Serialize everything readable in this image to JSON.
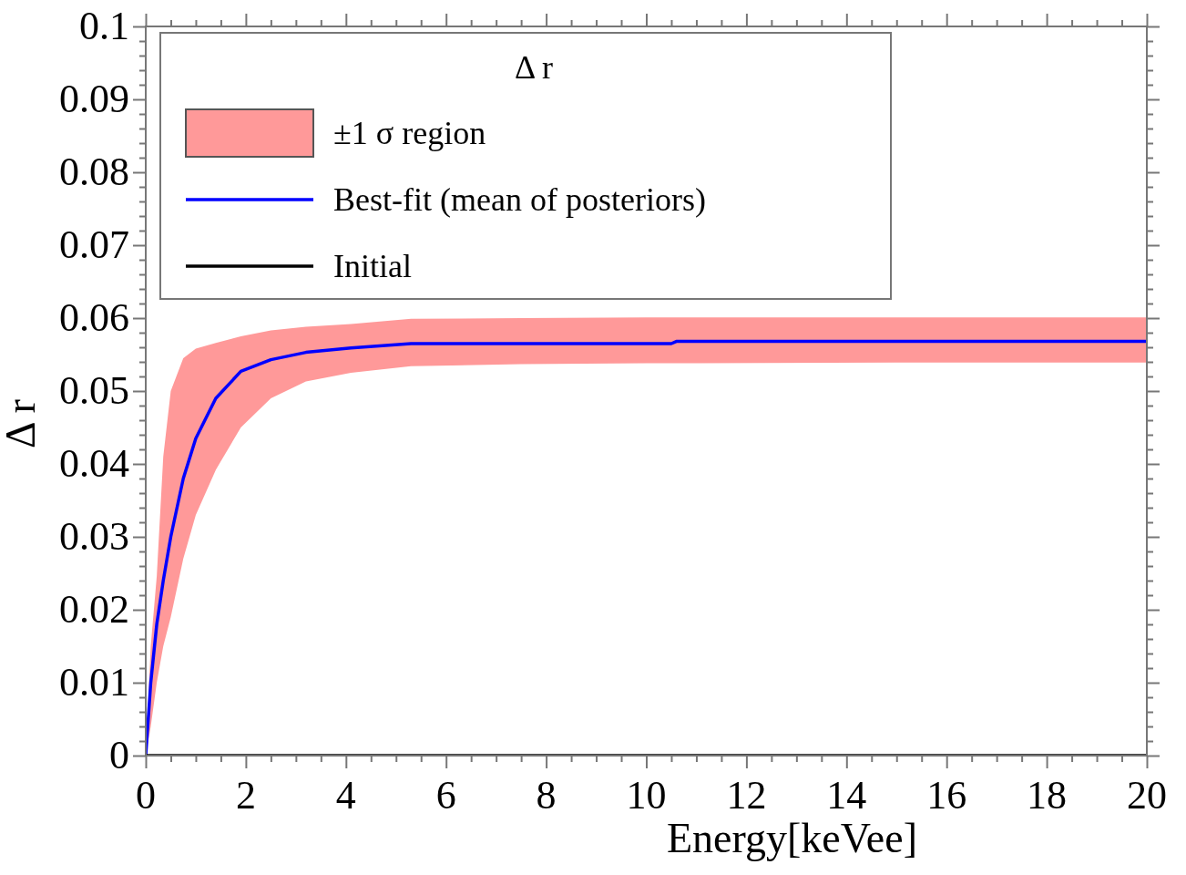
{
  "chart_data": {
    "type": "line",
    "xlabel": "Energy[keVee]",
    "ylabel": "Δ r",
    "legend_title": "Δ r",
    "legend": "top left",
    "grid": false,
    "line_style": "solid",
    "marker": "none",
    "annotations": [
      "±1 σ region"
    ],
    "xlim": [
      0,
      20
    ],
    "xticks": [
      0,
      2,
      4,
      6,
      8,
      10,
      12,
      14,
      16,
      18,
      20
    ],
    "ylim": [
      0,
      0.1
    ],
    "yticks": [
      0,
      0.01,
      0.02,
      0.03,
      0.04,
      0.05,
      0.06,
      0.07,
      0.08,
      0.09,
      0.1
    ],
    "series": [
      {
        "name": "Best-fit (mean of posteriors)",
        "type": "line",
        "color": "#0000ff",
        "x": [
          0,
          0.1,
          0.22,
          0.35,
          0.5,
          0.75,
          1.0,
          1.4,
          1.9,
          2.5,
          3.2,
          4.1,
          5.3,
          7.5,
          10,
          10.5,
          10.6,
          15,
          20
        ],
        "values": [
          0,
          0.01,
          0.018,
          0.024,
          0.03,
          0.038,
          0.0435,
          0.049,
          0.0527,
          0.0543,
          0.0553,
          0.0559,
          0.0565,
          0.0565,
          0.0565,
          0.0565,
          0.0568,
          0.0568,
          0.0568
        ],
        "lower": [
          0,
          0.004,
          0.01,
          0.015,
          0.019,
          0.027,
          0.033,
          0.0392,
          0.045,
          0.049,
          0.0513,
          0.0525,
          0.0534,
          0.0537,
          0.0538,
          0.0538,
          0.0538,
          0.0539,
          0.0539
        ],
        "upper": [
          0,
          0.015,
          0.0246,
          0.041,
          0.05,
          0.0545,
          0.0558,
          0.0566,
          0.0575,
          0.0583,
          0.0588,
          0.0592,
          0.0599,
          0.06,
          0.0601,
          0.0601,
          0.0601,
          0.0601,
          0.0601
        ]
      },
      {
        "name": "Initial",
        "type": "line",
        "color": "#000000",
        "x": [
          0,
          20
        ],
        "values": [
          0,
          0
        ]
      }
    ]
  }
}
